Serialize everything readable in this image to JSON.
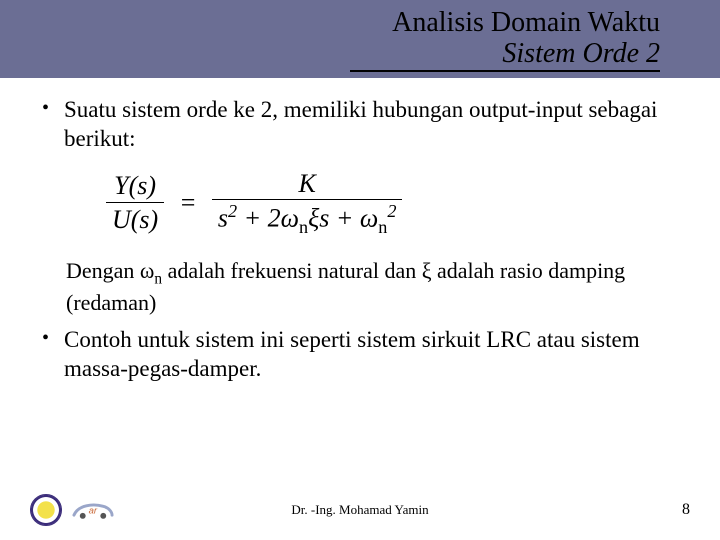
{
  "colors": {
    "header_bg": "#6b6e94",
    "text": "#000000",
    "background": "#ffffff",
    "logo_purple": "#3b2c7a",
    "logo_car_body": "#9aa6c9",
    "logo_car_accent": "#c96a3a"
  },
  "header": {
    "title_line1": "Analisis Domain Waktu",
    "title_line2": "Sistem Orde 2"
  },
  "body": {
    "bullet1": "Suatu sistem orde ke 2, memiliki hubungan output-input sebagai berikut:",
    "formula": {
      "lhs_num": "Y(s)",
      "lhs_den": "U(s)",
      "rhs_num": "K",
      "rhs_den_html": "s<sup>2</sup> + 2ω<sub>n</sub>ξs + ω<sub>n</sub><sup>2</sup>"
    },
    "note_html": "Dengan ω<sub>n</sub> adalah frekuensi natural dan ξ adalah rasio damping (redaman)",
    "bullet2": "Contoh untuk sistem ini seperti sistem sirkuit LRC atau sistem massa-pegas-damper."
  },
  "footer": {
    "author": "Dr. -Ing. Mohamad Yamin",
    "page": "8",
    "logo2_text": "ar"
  }
}
